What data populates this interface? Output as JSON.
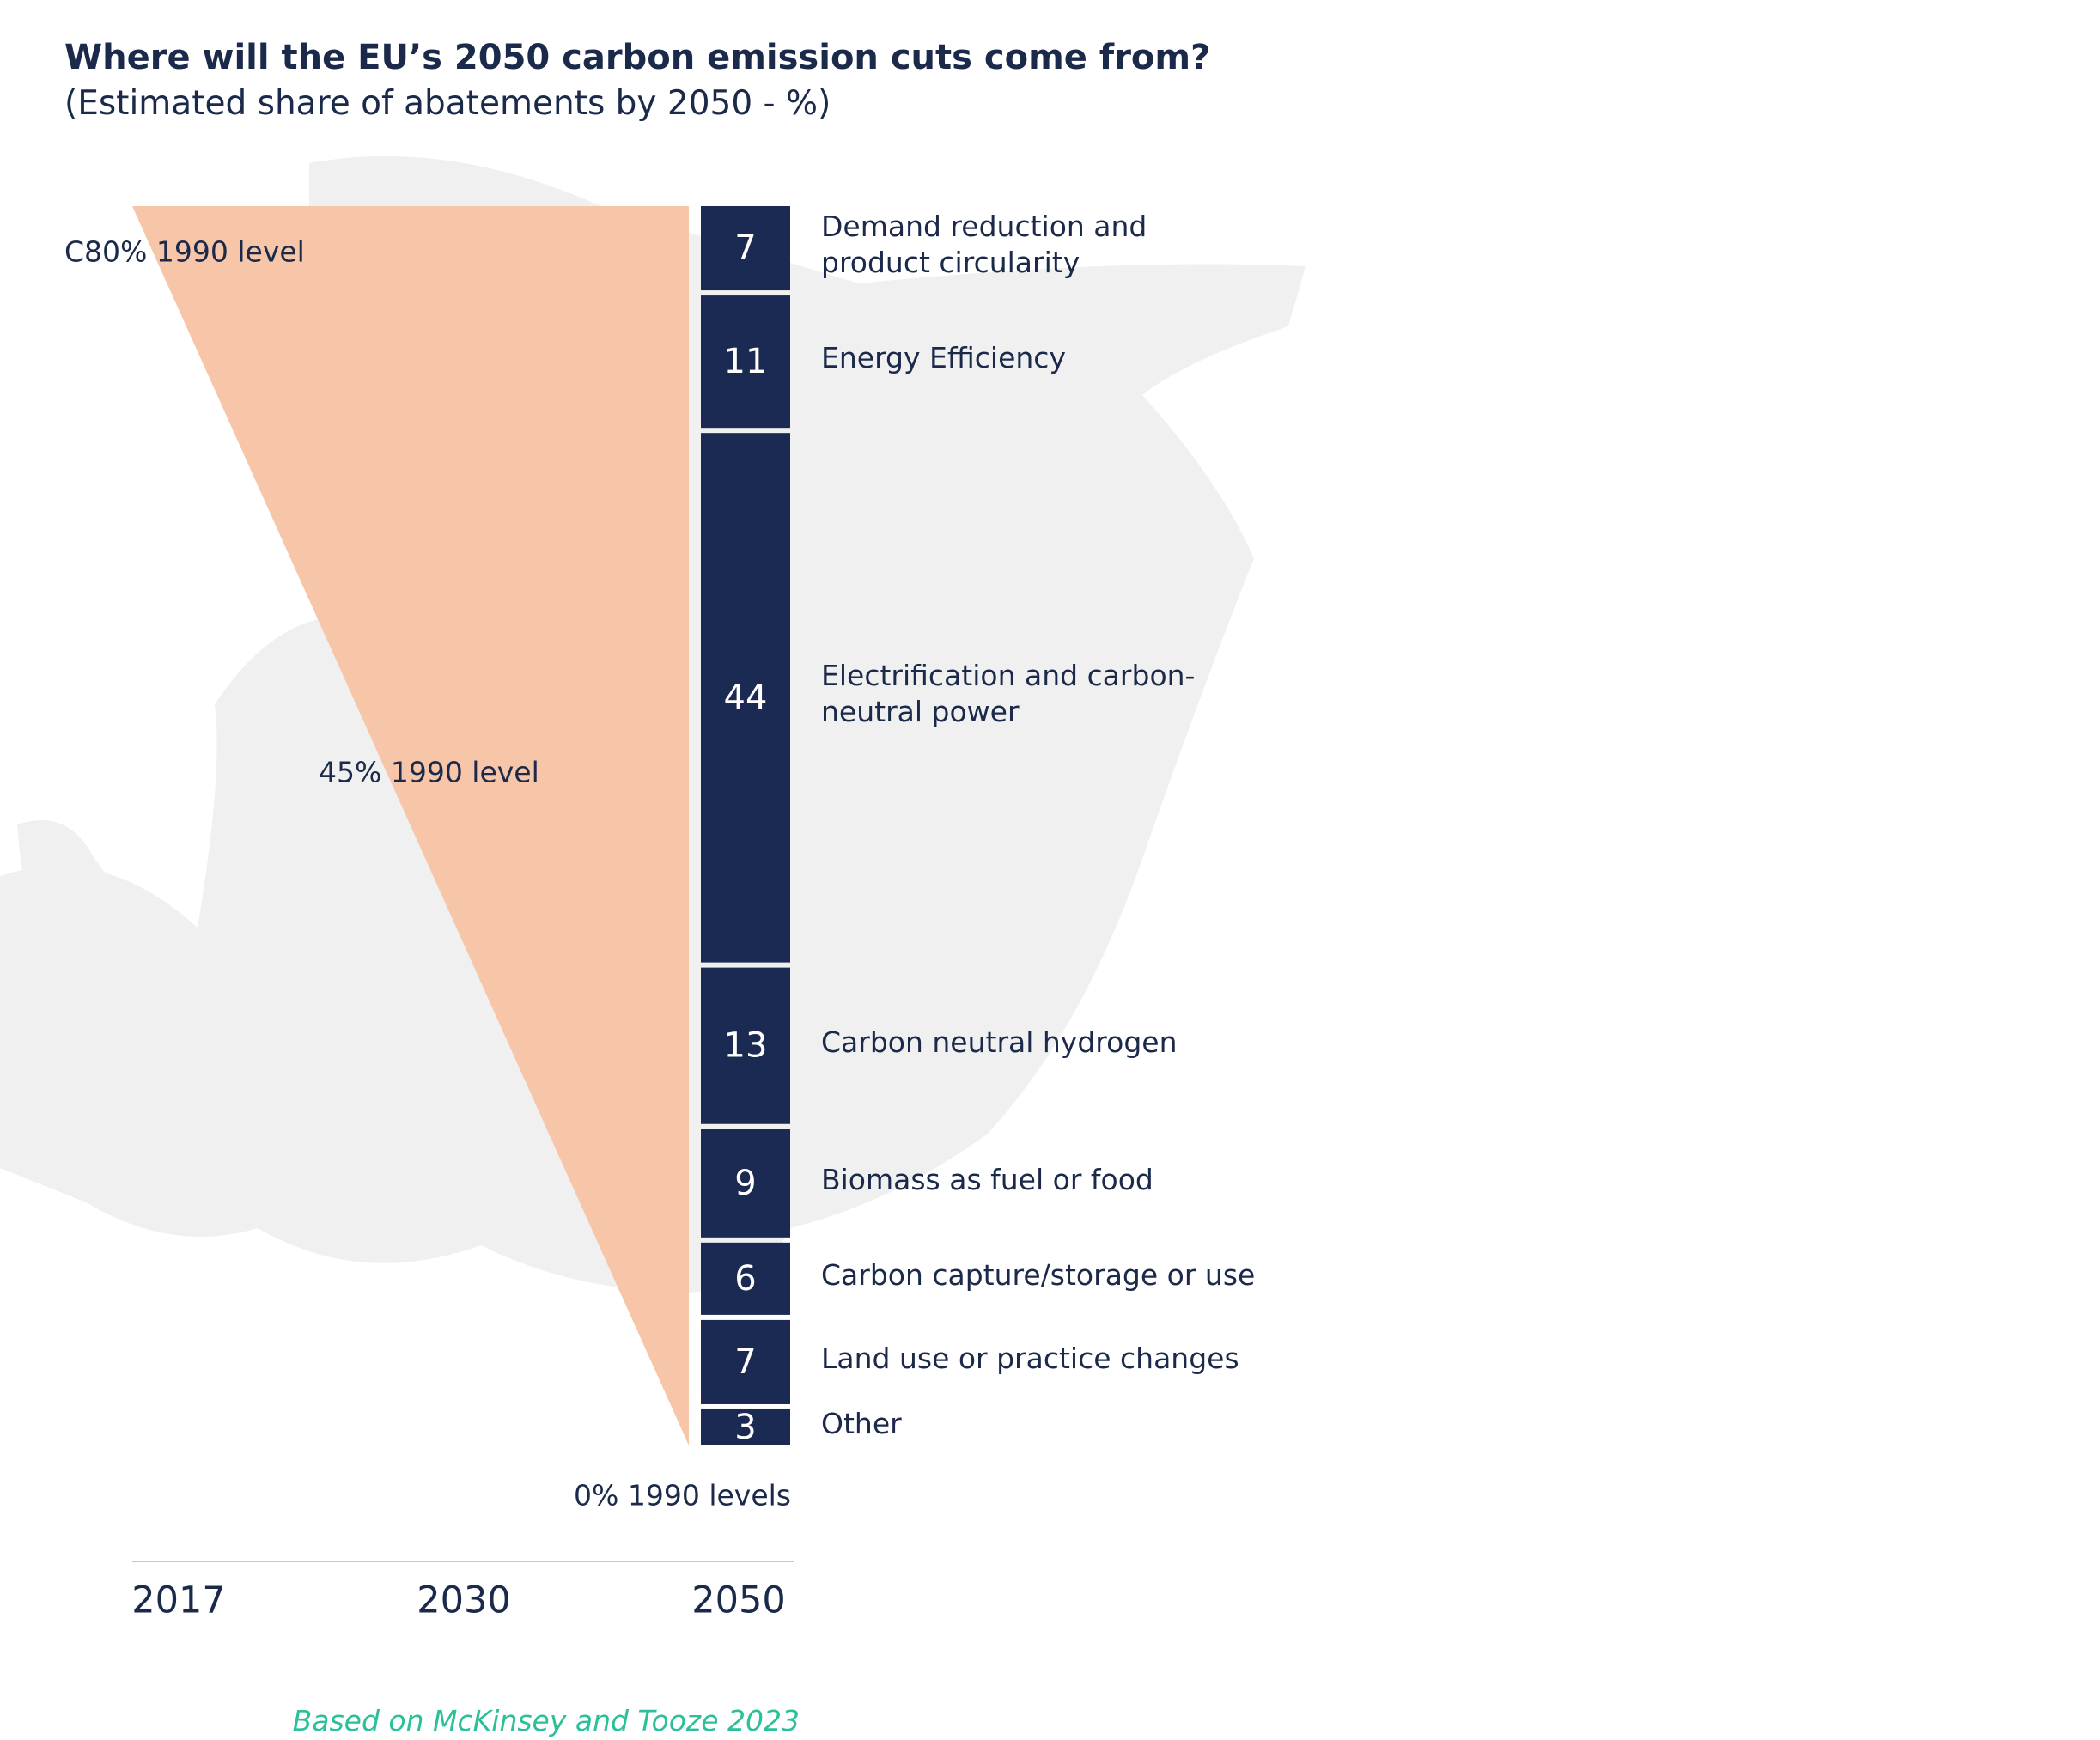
{
  "chart_data": {
    "type": "stacked-bar",
    "title": "Where will the EU’s 2050 carbon emission cuts come from?",
    "subtitle": "(Estimated share of abatements by 2050 - %)",
    "categories": [
      "Demand reduction and\nproduct circularity",
      "Energy Efficiency",
      "Electrification and carbon-\nneutral power",
      "Carbon neutral hydrogen",
      "Biomass as fuel or food",
      "Carbon capture/storage or use",
      "Land use or practice changes",
      "Other"
    ],
    "values": [
      7,
      11,
      44,
      13,
      9,
      6,
      7,
      3
    ],
    "color": "#1b2a52",
    "wedge_color": "#f7c5a7",
    "annotations": [
      "C80% 1990 level",
      "45% 1990 level",
      "0% 1990 levels"
    ],
    "timeline": [
      "2017",
      "2030",
      "2050"
    ],
    "source": "Based on McKinsey and Tooze 2023"
  }
}
